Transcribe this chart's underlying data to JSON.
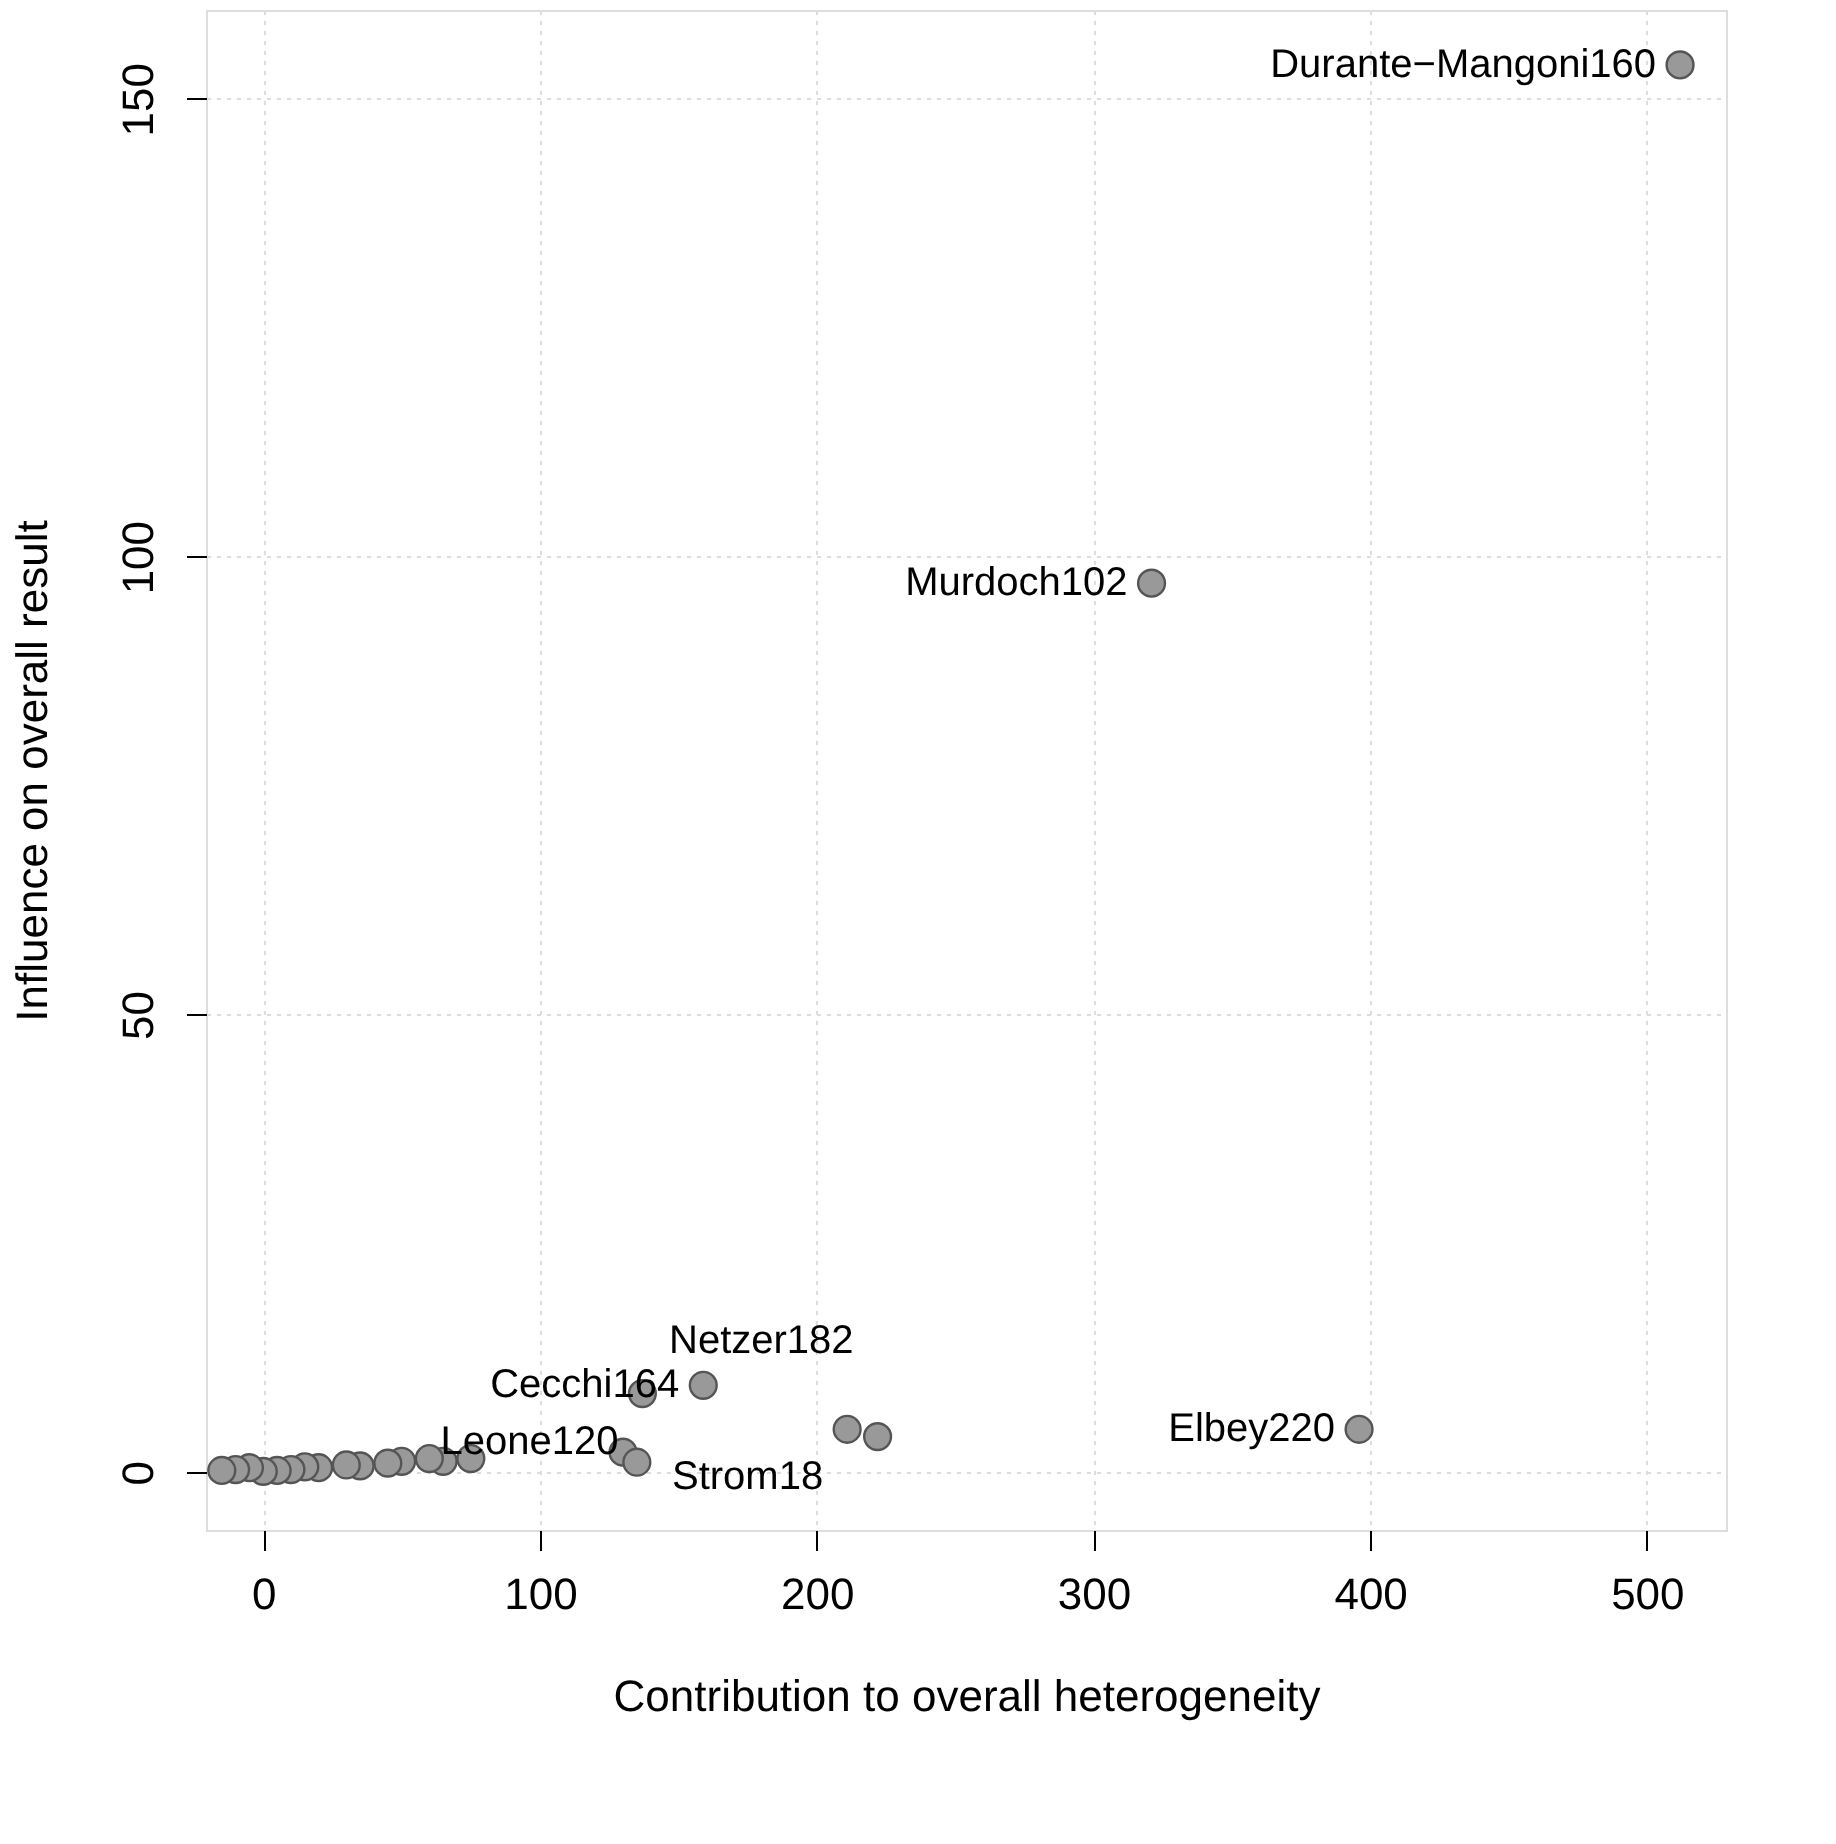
{
  "chart_data": {
    "type": "scatter",
    "xlabel": "Contribution to overall heterogeneity",
    "ylabel": "Influence on overall result",
    "x": [
      512,
      321,
      396,
      159,
      137,
      211,
      222,
      130,
      135,
      75,
      65,
      60,
      50,
      45,
      35,
      30,
      20,
      15,
      10,
      5,
      0,
      -5,
      -10,
      -15
    ],
    "series": [
      {
        "color": "#999999",
        "values": [
          153.7,
          97.1,
          4.7,
          9.5,
          8.6,
          4.7,
          3.9,
          2.2,
          1.1,
          1.5,
          1.2,
          1.5,
          1.2,
          1.0,
          0.7,
          0.8,
          0.5,
          0.6,
          0.3,
          0.2,
          0.1,
          0.5,
          0.3,
          0.2
        ]
      }
    ],
    "annotations": [
      {
        "text": "Durante−Mangoni160",
        "x": 512,
        "y": 153.7
      },
      {
        "text": "Murdoch102",
        "x": 321,
        "y": 97.1
      },
      {
        "text": "Elbey220",
        "x": 396,
        "y": 4.7
      },
      {
        "text": "Cecchi164",
        "x": 159,
        "y": 9.5
      },
      {
        "text": "Leone120",
        "x": 137,
        "y": 8.6
      },
      {
        "text": "Strom18",
        "x": 211,
        "y": 4.7
      },
      {
        "text": "Netzer182",
        "x": 222,
        "y": 3.9
      }
    ],
    "xlim": [
      -20.7,
      528.6
    ],
    "ylim": [
      -6.3,
      159.7
    ],
    "xticks": [
      0,
      100,
      200,
      300,
      400,
      500
    ],
    "yticks": [
      0,
      50,
      100,
      150
    ],
    "grid": true,
    "marker": "circle"
  }
}
